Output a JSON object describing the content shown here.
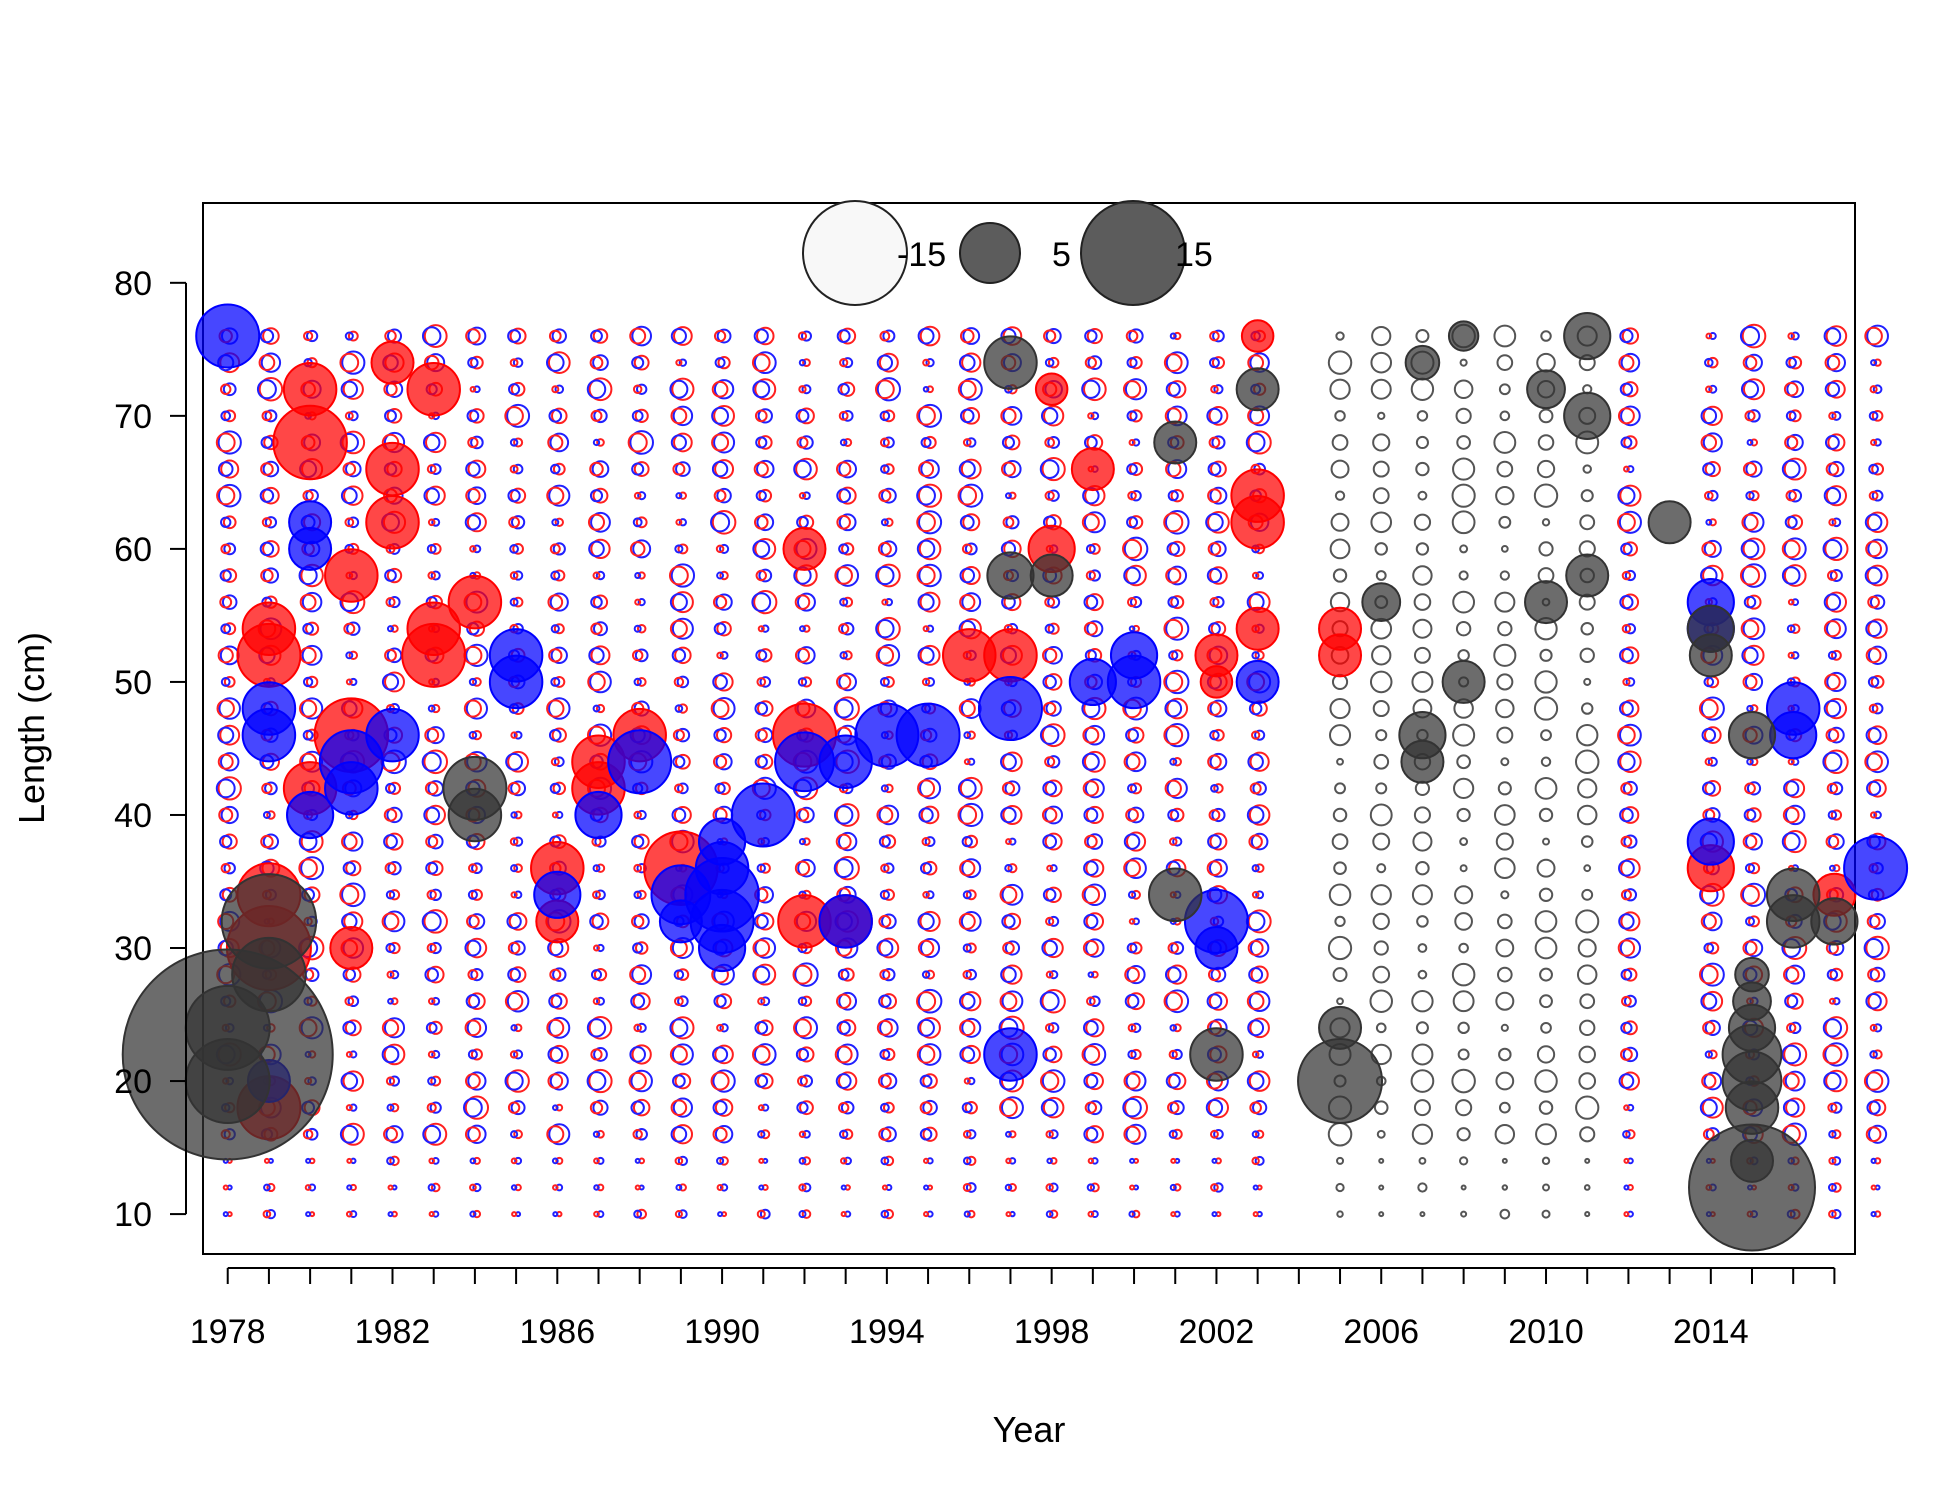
{
  "chart_data": {
    "type": "scatter",
    "subtype": "bubble",
    "title": "",
    "xlabel": "Year",
    "ylabel": "Length (cm)",
    "xlim": [
      1977.4,
      2017.5
    ],
    "ylim": [
      7.0,
      86.0
    ],
    "x_ticks": [
      1978,
      1979,
      1980,
      1981,
      1982,
      1983,
      1984,
      1985,
      1986,
      1987,
      1988,
      1989,
      1990,
      1991,
      1992,
      1993,
      1994,
      1995,
      1996,
      1997,
      1998,
      1999,
      2000,
      2001,
      2002,
      2003,
      2004,
      2005,
      2006,
      2007,
      2008,
      2009,
      2010,
      2011,
      2012,
      2013,
      2014,
      2015,
      2016,
      2017
    ],
    "x_tick_labels": [
      "1978",
      "1982",
      "1986",
      "1990",
      "1994",
      "1998",
      "2002",
      "2006",
      "2010",
      "2014"
    ],
    "y_ticks": [
      10,
      20,
      30,
      40,
      50,
      60,
      70,
      80
    ],
    "grid": false,
    "legend": {
      "placement": "top-center",
      "entries": [
        {
          "label": "-15",
          "value": -15,
          "fill": "#f8f8f8"
        },
        {
          "label": "5",
          "value": 5,
          "fill": "#4a4a4a"
        },
        {
          "label": "15",
          "value": 15,
          "fill": "#4a4a4a"
        }
      ]
    },
    "colors": {
      "female": "#ff0000",
      "male": "#0000ff",
      "combined": "#333333"
    },
    "years": [
      1978,
      1979,
      1980,
      1981,
      1982,
      1983,
      1984,
      1985,
      1986,
      1987,
      1988,
      1989,
      1990,
      1991,
      1992,
      1993,
      1994,
      1995,
      1996,
      1997,
      1998,
      1999,
      2000,
      2001,
      2002,
      2003,
      2005,
      2006,
      2007,
      2008,
      2009,
      2010,
      2011,
      2012,
      2014,
      2015,
      2016,
      2017,
      2018
    ],
    "lengths": [
      10,
      12,
      14,
      16,
      18,
      20,
      22,
      24,
      26,
      28,
      30,
      32,
      34,
      36,
      38,
      40,
      42,
      44,
      46,
      48,
      50,
      52,
      54,
      56,
      58,
      60,
      62,
      64,
      66,
      68,
      70,
      72,
      74,
      76
    ],
    "series": [
      {
        "name": "female",
        "points": [
          [
            1979,
            18,
            3
          ],
          [
            1979,
            30,
            4
          ],
          [
            1979,
            34,
            3
          ],
          [
            1979,
            52,
            3
          ],
          [
            1979,
            54,
            2.5
          ],
          [
            1980,
            68,
            3.5
          ],
          [
            1980,
            72,
            2.5
          ],
          [
            1980,
            42,
            2.5
          ],
          [
            1981,
            58,
            2.5
          ],
          [
            1981,
            46,
            3.5
          ],
          [
            1981,
            30,
            2
          ],
          [
            1982,
            66,
            2.5
          ],
          [
            1982,
            62,
            2.5
          ],
          [
            1982,
            74,
            2
          ],
          [
            1983,
            72,
            2.5
          ],
          [
            1983,
            54,
            2.5
          ],
          [
            1983,
            52,
            3
          ],
          [
            1984,
            56,
            2.5
          ],
          [
            1986,
            36,
            2.5
          ],
          [
            1986,
            32,
            2
          ],
          [
            1987,
            44,
            2.5
          ],
          [
            1987,
            42,
            2.5
          ],
          [
            1988,
            46,
            2.5
          ],
          [
            1989,
            36,
            3.5
          ],
          [
            1992,
            46,
            3
          ],
          [
            1992,
            32,
            2.5
          ],
          [
            1992,
            60,
            2
          ],
          [
            1993,
            32,
            2.5
          ],
          [
            1996,
            52,
            2.5
          ],
          [
            1997,
            52,
            2.5
          ],
          [
            1998,
            60,
            2.2
          ],
          [
            1998,
            72,
            1.5
          ],
          [
            1999,
            66,
            2
          ],
          [
            2002,
            52,
            2
          ],
          [
            2002,
            50,
            1.5
          ],
          [
            2003,
            62,
            2.5
          ],
          [
            2003,
            64,
            2.5
          ],
          [
            2003,
            54,
            2
          ],
          [
            2003,
            76,
            1.5
          ],
          [
            2005,
            54,
            2
          ],
          [
            2005,
            52,
            2
          ],
          [
            2014,
            36,
            2.2
          ],
          [
            2017,
            34,
            2
          ]
        ]
      },
      {
        "name": "male",
        "points": [
          [
            1978,
            76,
            3
          ],
          [
            1979,
            48,
            2.5
          ],
          [
            1979,
            46,
            2.5
          ],
          [
            1979,
            20,
            2
          ],
          [
            1980,
            62,
            2
          ],
          [
            1980,
            60,
            2
          ],
          [
            1980,
            40,
            2.2
          ],
          [
            1981,
            44,
            3
          ],
          [
            1981,
            42,
            2.5
          ],
          [
            1982,
            46,
            2.5
          ],
          [
            1985,
            52,
            2.5
          ],
          [
            1985,
            50,
            2.5
          ],
          [
            1986,
            34,
            2.2
          ],
          [
            1987,
            40,
            2.2
          ],
          [
            1988,
            44,
            3
          ],
          [
            1989,
            34,
            2.8
          ],
          [
            1989,
            32,
            2
          ],
          [
            1990,
            36,
            2.5
          ],
          [
            1990,
            34,
            3.5
          ],
          [
            1990,
            32,
            3
          ],
          [
            1990,
            30,
            2.2
          ],
          [
            1990,
            38,
            2.2
          ],
          [
            1991,
            40,
            3
          ],
          [
            1992,
            44,
            2.8
          ],
          [
            1993,
            44,
            2.5
          ],
          [
            1993,
            32,
            2.5
          ],
          [
            1994,
            46,
            3
          ],
          [
            1995,
            46,
            3
          ],
          [
            1997,
            22,
            2.5
          ],
          [
            1997,
            48,
            3
          ],
          [
            1999,
            50,
            2.2
          ],
          [
            2000,
            52,
            2.2
          ],
          [
            2000,
            50,
            2.5
          ],
          [
            2002,
            32,
            3
          ],
          [
            2002,
            30,
            2
          ],
          [
            2003,
            50,
            2
          ],
          [
            2014,
            56,
            2.2
          ],
          [
            2014,
            54,
            2.2
          ],
          [
            2014,
            38,
            2.2
          ],
          [
            2016,
            48,
            2.5
          ],
          [
            2016,
            46,
            2.2
          ],
          [
            2018,
            36,
            3
          ]
        ]
      },
      {
        "name": "combined",
        "points": [
          [
            1978,
            22,
            10
          ],
          [
            1978,
            24,
            4
          ],
          [
            1978,
            20,
            4
          ],
          [
            1979,
            32,
            4.5
          ],
          [
            1979,
            28,
            3.5
          ],
          [
            1984,
            42,
            3
          ],
          [
            1984,
            40,
            2.5
          ],
          [
            1997,
            74,
            2.5
          ],
          [
            1997,
            58,
            2.2
          ],
          [
            1998,
            58,
            2
          ],
          [
            2001,
            34,
            2.5
          ],
          [
            2001,
            68,
            2
          ],
          [
            2002,
            22,
            2.5
          ],
          [
            2003,
            72,
            2
          ],
          [
            2005,
            20,
            4
          ],
          [
            2005,
            24,
            2
          ],
          [
            2006,
            56,
            1.8
          ],
          [
            2007,
            46,
            2.2
          ],
          [
            2007,
            44,
            2
          ],
          [
            2007,
            74,
            1.6
          ],
          [
            2008,
            50,
            2
          ],
          [
            2008,
            76,
            1.4
          ],
          [
            2010,
            56,
            2
          ],
          [
            2010,
            72,
            1.8
          ],
          [
            2011,
            76,
            2.2
          ],
          [
            2011,
            70,
            2.2
          ],
          [
            2011,
            58,
            2
          ],
          [
            2013,
            62,
            2
          ],
          [
            2014,
            54,
            2.2
          ],
          [
            2014,
            52,
            2
          ],
          [
            2015,
            12,
            6
          ],
          [
            2015,
            14,
            2
          ],
          [
            2015,
            18,
            2.5
          ],
          [
            2015,
            20,
            2.8
          ],
          [
            2015,
            22,
            2.8
          ],
          [
            2015,
            24,
            2.2
          ],
          [
            2015,
            26,
            1.8
          ],
          [
            2015,
            28,
            1.6
          ],
          [
            2015,
            46,
            2.2
          ],
          [
            2016,
            32,
            2.5
          ],
          [
            2016,
            34,
            2.5
          ],
          [
            2017,
            32,
            2.2
          ]
        ]
      }
    ]
  }
}
